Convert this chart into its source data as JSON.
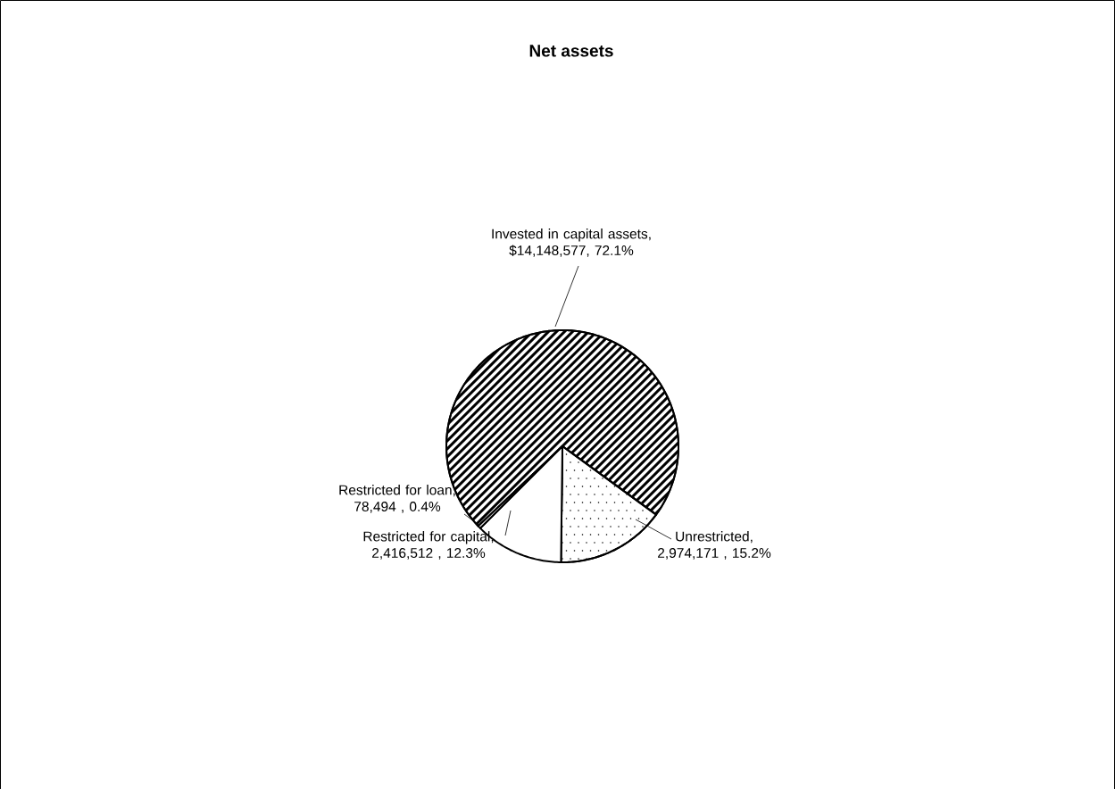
{
  "chart_data": {
    "type": "pie",
    "title": "Net assets",
    "categories": [
      "Invested in capital assets",
      "Unrestricted",
      "Restricted for capital",
      "Restricted for loan"
    ],
    "values": [
      14148577,
      2974171,
      2416512,
      78494
    ],
    "colors": [
      "#ffffff",
      "#ffffff",
      "#ffffff",
      "#ffffff"
    ],
    "value_labels": [
      ", $14,148,577, 72.1%",
      ",  2,974,171 , 15.2%",
      ", 2,416,512 , 12.3%",
      ", 78,494 , 0.4%"
    ]
  }
}
